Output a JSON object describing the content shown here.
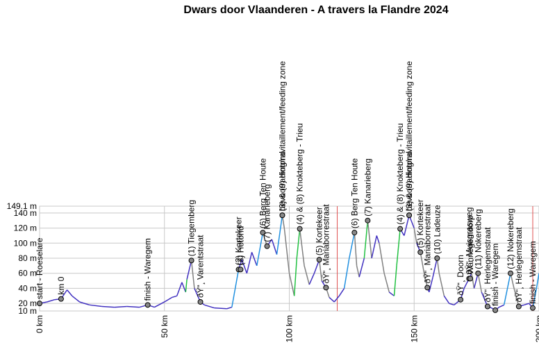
{
  "chart_data": {
    "type": "elevation-profile",
    "title": "Dwars door Vlaanderen - A travers la Flandre 2024",
    "xlim": [
      0,
      200
    ],
    "ylim": [
      10,
      149.1
    ],
    "xticks": [
      {
        "value": 0,
        "label": "0 km"
      },
      {
        "value": 50,
        "label": "50 km"
      },
      {
        "value": 100,
        "label": "100 km"
      },
      {
        "value": 150,
        "label": "150 km"
      },
      {
        "value": 200,
        "label": "200 km"
      }
    ],
    "yticks": [
      {
        "value": 10,
        "label": "10 m"
      },
      {
        "value": 20,
        "label": "20 m"
      },
      {
        "value": 40,
        "label": "40 m"
      },
      {
        "value": 60,
        "label": "60 m"
      },
      {
        "value": 80,
        "label": "80 m"
      },
      {
        "value": 100,
        "label": "100 m"
      },
      {
        "value": 120,
        "label": "120 m"
      },
      {
        "value": 140,
        "label": "140 m"
      },
      {
        "value": 149.1,
        "label": "149.1 m"
      }
    ],
    "grid": true,
    "x": [
      0,
      3,
      6,
      8.6,
      11,
      13,
      16,
      20,
      25,
      30,
      35,
      40,
      43.3,
      46,
      50,
      53,
      55,
      57,
      58.5,
      59,
      60.8,
      62,
      64.4,
      66,
      70,
      75,
      77,
      79.7,
      81,
      83,
      85,
      87,
      89.4,
      91.1,
      93,
      95,
      97.2,
      98,
      100,
      102,
      103,
      104.2,
      106,
      108,
      110,
      112,
      113,
      114.7,
      116,
      118,
      120,
      122,
      124,
      126.1,
      127,
      128,
      130,
      131.4,
      133,
      135,
      136,
      138,
      140,
      142,
      143,
      144.4,
      146,
      148,
      150,
      151,
      152.5,
      154,
      155.3,
      156,
      157.5,
      159.2,
      160,
      162,
      164,
      166,
      168.6,
      170,
      172,
      173,
      174,
      175.6,
      177,
      179.4,
      181,
      182.5,
      184,
      186,
      188.6,
      190,
      191.9,
      194,
      196,
      197.5,
      199,
      200
    ],
    "y": [
      20,
      22,
      25,
      26,
      38,
      30,
      22,
      18,
      16,
      15,
      16,
      15,
      18,
      15,
      22,
      28,
      30,
      48,
      35,
      52,
      77,
      40,
      22,
      18,
      14,
      13,
      15,
      65,
      78,
      60,
      88,
      70,
      114,
      96,
      105,
      85,
      137,
      120,
      60,
      30,
      80,
      119,
      70,
      45,
      60,
      78,
      50,
      41,
      28,
      22,
      30,
      40,
      80,
      114,
      70,
      55,
      80,
      130,
      80,
      110,
      100,
      60,
      35,
      30,
      70,
      119,
      110,
      137,
      120,
      100,
      88,
      60,
      41,
      35,
      55,
      80,
      60,
      30,
      20,
      18,
      25,
      40,
      53,
      60,
      40,
      60,
      35,
      16,
      14,
      11,
      15,
      18,
      60,
      40,
      16,
      18,
      20,
      14,
      40,
      60
    ],
    "markers": [
      119.2,
      197.5
    ],
    "points": {
      "x": [
        0,
        8.6,
        43.3,
        60.8,
        64.4,
        79.7,
        80.5,
        89.4,
        91.1,
        97.2,
        97.2,
        104.2,
        112,
        114.7,
        126.1,
        131.4,
        144.4,
        148,
        148,
        152.5,
        155.3,
        159.2,
        168.6,
        172,
        172.5,
        175.6,
        179.4,
        182.5,
        188.6,
        191.9,
        197.5
      ],
      "y": [
        20,
        26,
        18,
        77,
        22,
        65,
        65,
        114,
        96,
        137,
        137,
        119,
        78,
        41,
        114,
        130,
        119,
        137,
        137,
        88,
        41,
        80,
        25,
        53,
        53,
        60,
        16,
        11,
        60,
        16,
        14
      ],
      "labels": [
        "start - Roeselare",
        "km 0",
        "finish - Waregem",
        "(1) Tiegemberg",
        "ðŸ“¸ Varentstraat",
        "(2) Kortekeer",
        "(3) Hotond",
        "(6) Berg Ten Houte",
        "(7) Kanarieberg",
        "bevoorrading/ravitaillement/feeding zone",
        "(3) & (9) Hotond",
        "(4) & (8) Knokteberg - Trieu",
        "(5) Kortekeer",
        "ðŸ“¸ Mariaborrestraat",
        "(6) Berg Ten Houte",
        "(7) Kanarieberg",
        "(4) & (8) Knokteberg - Trieu",
        "bevoorrading/ravitaillement/feeding zone",
        "(3) & (9) Hotond",
        "(5) Kortekeer",
        "ðŸ“¸ Mariaborrestraat",
        "(10) Ladeuze",
        "ðŸ“¸ Doorn",
        "ðŸ“¸ Muisgrasweg",
        "Wannegemdorp",
        "(11) Nokereberg",
        "ðŸ“¸ Herlegemstraat",
        "finish - Waregem",
        "(12) Nokereberg",
        "ðŸ“¸ Herlegemstraat",
        "finish - Waregem"
      ]
    }
  }
}
